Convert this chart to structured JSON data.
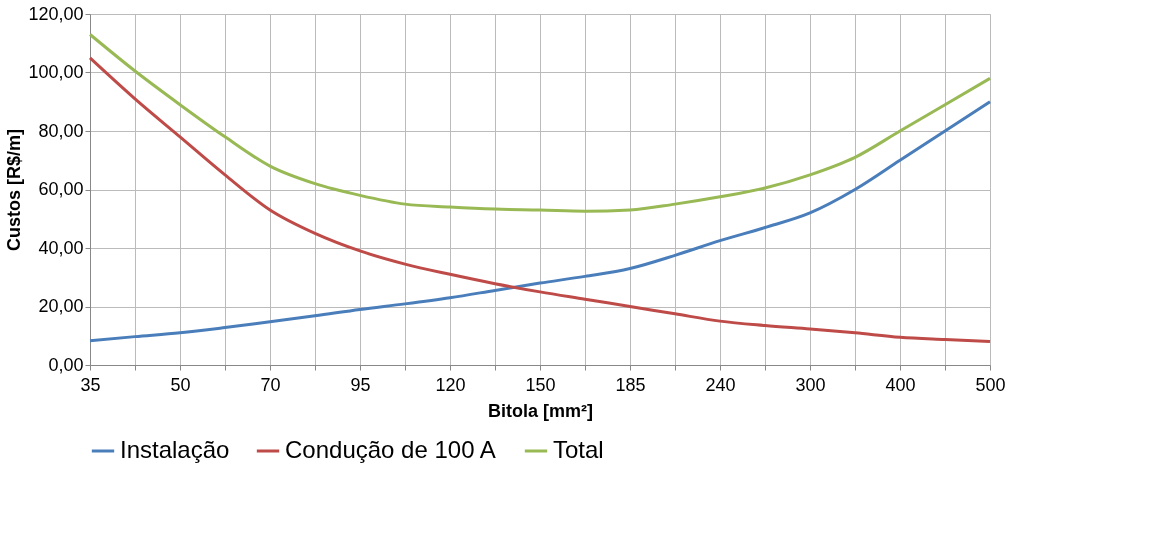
{
  "chart_data": {
    "type": "line",
    "xlabel": "Bitola [mm²]",
    "ylabel": "Custos [R$/m]",
    "categories": [
      "35",
      null,
      "50",
      null,
      "70",
      null,
      "95",
      null,
      "120",
      null,
      "150",
      null,
      "185",
      null,
      "240",
      null,
      "300",
      null,
      "400",
      null,
      "500"
    ],
    "ylim": [
      0,
      120
    ],
    "yticks": [
      {
        "value": 0,
        "label": "0,00"
      },
      {
        "value": 20,
        "label": "20,00"
      },
      {
        "value": 40,
        "label": "40,00"
      },
      {
        "value": 60,
        "label": "60,00"
      },
      {
        "value": 80,
        "label": "80,00"
      },
      {
        "value": 100,
        "label": "100,00"
      },
      {
        "value": 120,
        "label": "120,00"
      }
    ],
    "grid": true,
    "legend": "bottom",
    "marker": "none",
    "line_style": "solid",
    "series": [
      {
        "name": "Instalação",
        "color": "#4a7ebb",
        "values": [
          8.3,
          9.7,
          11,
          12.8,
          14.8,
          16.8,
          19,
          20.9,
          23,
          25.5,
          28,
          30.3,
          33,
          37.5,
          42.5,
          47,
          52,
          60,
          70,
          80,
          90
        ]
      },
      {
        "name": "Condução de 100 A",
        "color": "#be4b48",
        "values": [
          105,
          91,
          78,
          65,
          53,
          45,
          39,
          34.5,
          31,
          27.8,
          25,
          22.5,
          20,
          17.5,
          15,
          13.5,
          12.3,
          11,
          9.5,
          8.7,
          8
        ]
      },
      {
        "name": "Total",
        "color": "#98b954",
        "values": [
          113,
          100.5,
          89,
          78,
          68,
          62,
          58,
          55,
          54,
          53.3,
          53,
          52.6,
          53,
          55,
          57.5,
          60.5,
          65,
          71,
          80,
          89,
          98
        ]
      }
    ]
  }
}
